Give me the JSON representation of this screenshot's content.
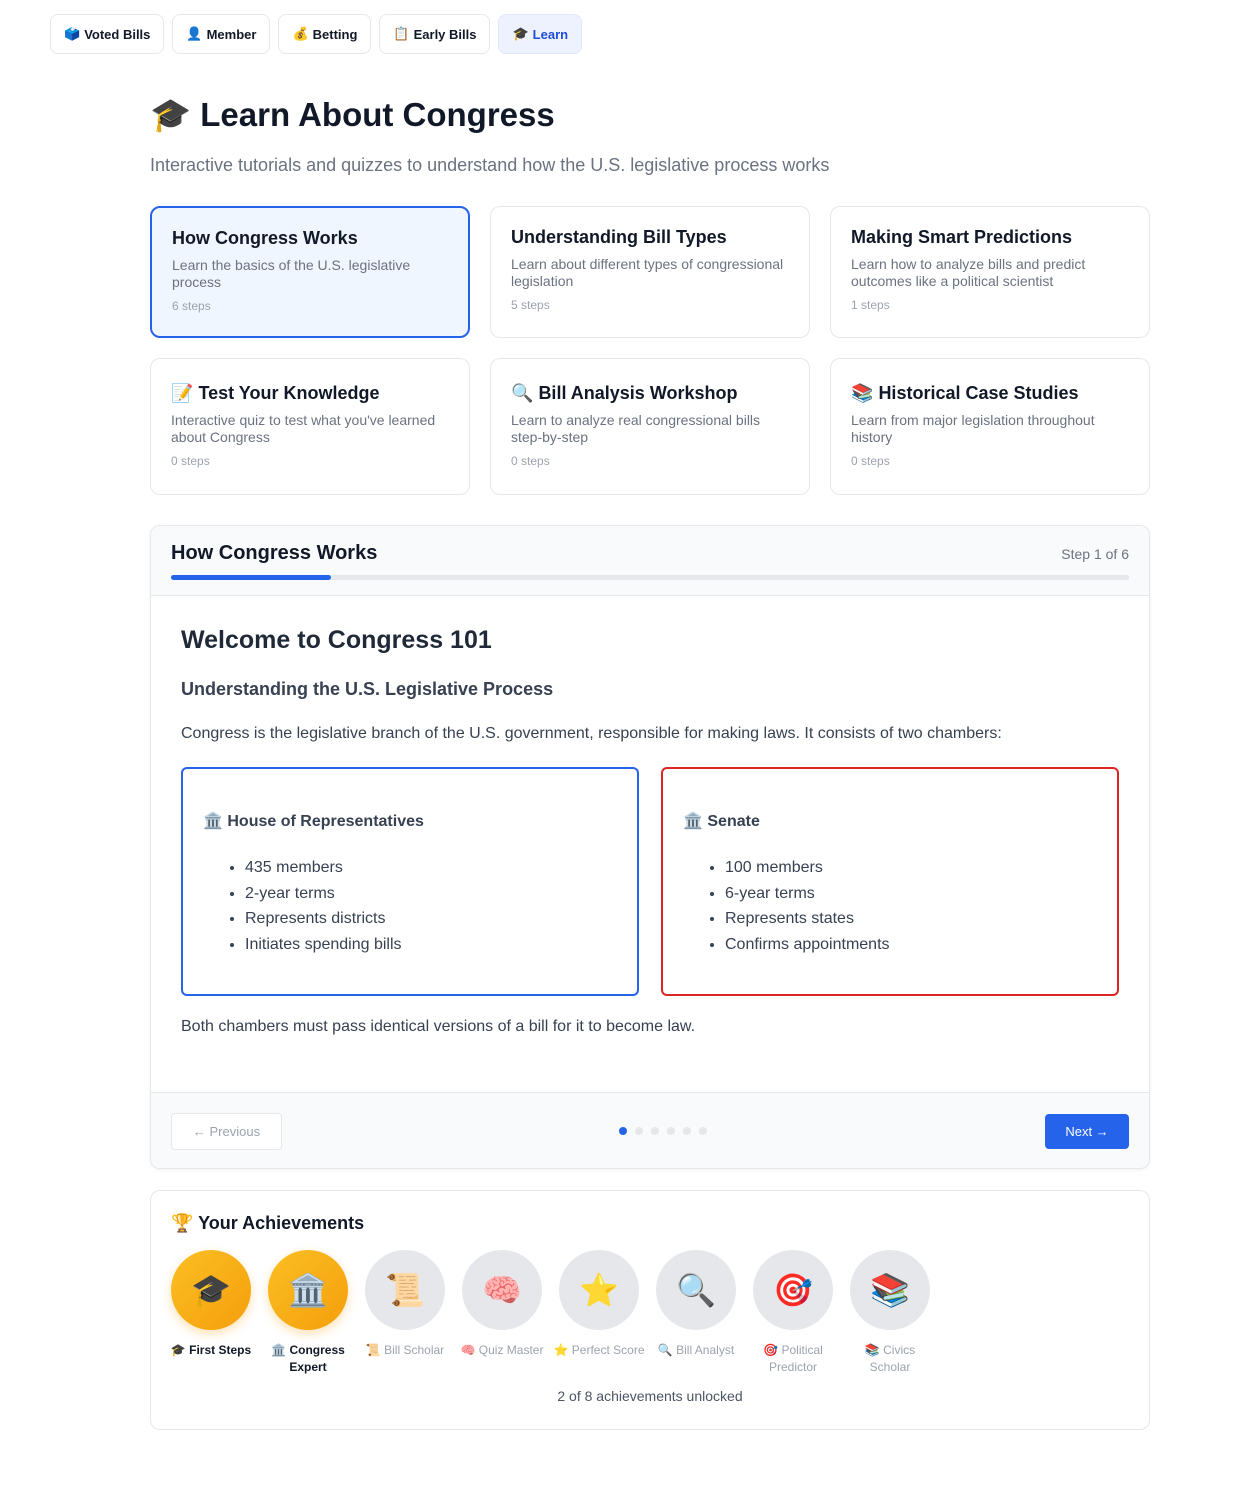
{
  "nav": [
    {
      "icon": "🗳️",
      "label": "Voted Bills"
    },
    {
      "icon": "👤",
      "label": "Member"
    },
    {
      "icon": "💰",
      "label": "Betting"
    },
    {
      "icon": "📋",
      "label": "Early Bills"
    },
    {
      "icon": "🎓",
      "label": "Learn",
      "active": true
    }
  ],
  "header": {
    "icon": "🎓",
    "title": "Learn About Congress",
    "subtitle": "Interactive tutorials and quizzes to understand how the U.S. legislative process works"
  },
  "modules": [
    {
      "icon": "",
      "title": "How Congress Works",
      "desc": "Learn the basics of the U.S. legislative process",
      "steps": "6 steps",
      "active": true
    },
    {
      "icon": "",
      "title": "Understanding Bill Types",
      "desc": "Learn about different types of congressional legislation",
      "steps": "5 steps"
    },
    {
      "icon": "",
      "title": "Making Smart Predictions",
      "desc": "Learn how to analyze bills and predict outcomes like a political scientist",
      "steps": "1 steps"
    },
    {
      "icon": "📝",
      "title": "Test Your Knowledge",
      "desc": "Interactive quiz to test what you've learned about Congress",
      "steps": "0 steps"
    },
    {
      "icon": "🔍",
      "title": "Bill Analysis Workshop",
      "desc": "Learn to analyze real congressional bills step-by-step",
      "steps": "0 steps"
    },
    {
      "icon": "📚",
      "title": "Historical Case Studies",
      "desc": "Learn from major legislation throughout history",
      "steps": "0 steps"
    }
  ],
  "lesson": {
    "title": "How Congress Works",
    "step_label": "Step 1 of 6",
    "progress": 0.1667,
    "heading": "Welcome to Congress 101",
    "subheading": "Understanding the U.S. Legislative Process",
    "intro": "Congress is the legislative branch of the U.S. government, responsible for making laws. It consists of two chambers:",
    "house": {
      "icon": "🏛️",
      "title": "House of Representatives",
      "items": [
        "435 members",
        "2-year terms",
        "Represents districts",
        "Initiates spending bills"
      ],
      "color": "#2563eb"
    },
    "senate": {
      "icon": "🏛️",
      "title": "Senate",
      "items": [
        "100 members",
        "6-year terms",
        "Represents states",
        "Confirms appointments"
      ],
      "color": "#dc2626"
    },
    "outro": "Both chambers must pass identical versions of a bill for it to become law.",
    "prev_label": "← Previous",
    "next_label": "Next →",
    "current_step": 1,
    "total_steps": 6
  },
  "achievements": {
    "icon": "🏆",
    "title": "Your Achievements",
    "items": [
      {
        "icon": "🎓",
        "label": "First Steps",
        "unlocked": true
      },
      {
        "icon": "🏛️",
        "label": "Congress Expert",
        "unlocked": true
      },
      {
        "icon": "📜",
        "label": "Bill Scholar",
        "unlocked": false
      },
      {
        "icon": "🧠",
        "label": "Quiz Master",
        "unlocked": false
      },
      {
        "icon": "⭐",
        "label": "Perfect Score",
        "unlocked": false
      },
      {
        "icon": "🔍",
        "label": "Bill Analyst",
        "unlocked": false
      },
      {
        "icon": "🎯",
        "label": "Political Predictor",
        "unlocked": false
      },
      {
        "icon": "📚",
        "label": "Civics Scholar",
        "unlocked": false
      }
    ],
    "summary": "2 of 8 achievements unlocked"
  }
}
